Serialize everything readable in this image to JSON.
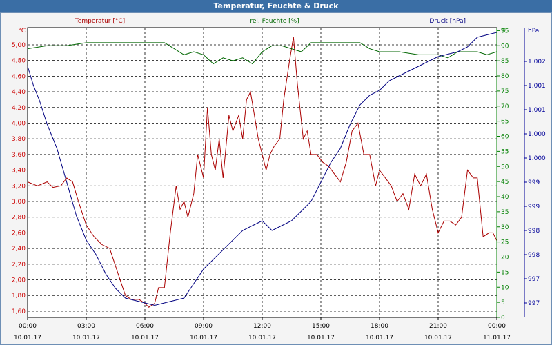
{
  "window": {
    "title": "Temperatur, Feuchte & Druck"
  },
  "chart_data": {
    "type": "line",
    "title": "Temperatur, Feuchte & Druck",
    "x_ticks": [
      {
        "time": "00:00",
        "date": "10.01.17"
      },
      {
        "time": "03:00",
        "date": "10.01.17"
      },
      {
        "time": "06:00",
        "date": "10.01.17"
      },
      {
        "time": "09:00",
        "date": "10.01.17"
      },
      {
        "time": "12:00",
        "date": "10.01.17"
      },
      {
        "time": "15:00",
        "date": "10.01.17"
      },
      {
        "time": "18:00",
        "date": "10.01.17"
      },
      {
        "time": "21:00",
        "date": "10.01.17"
      },
      {
        "time": "00:00",
        "date": "11.01.17"
      }
    ],
    "grid": true,
    "axes": {
      "temperature": {
        "unit": "°C",
        "ylim": [
          1.52,
          5.22
        ],
        "ticks": [
          "1,60",
          "1,80",
          "2,00",
          "2,20",
          "2,40",
          "2,60",
          "2,80",
          "3,00",
          "3,20",
          "3,40",
          "3,60",
          "3,80",
          "4,00",
          "4,20",
          "4,40",
          "4,60",
          "4,80",
          "5,00"
        ],
        "tick_values": [
          1.6,
          1.8,
          2.0,
          2.2,
          2.4,
          2.6,
          2.8,
          3.0,
          3.2,
          3.4,
          3.6,
          3.8,
          4.0,
          4.2,
          4.4,
          4.6,
          4.8,
          5.0
        ],
        "color": "#cc0000"
      },
      "humidity": {
        "unit": "%",
        "ylim": [
          0,
          96
        ],
        "ticks": [
          "0",
          "5",
          "10",
          "15",
          "20",
          "25",
          "30",
          "35",
          "40",
          "45",
          "50",
          "55",
          "60",
          "65",
          "70",
          "75",
          "80",
          "85",
          "90",
          "95"
        ],
        "tick_values": [
          0,
          5,
          10,
          15,
          20,
          25,
          30,
          35,
          40,
          45,
          50,
          55,
          60,
          65,
          70,
          75,
          80,
          85,
          90,
          95
        ],
        "color": "#008000"
      },
      "pressure": {
        "unit": "hPa",
        "ylim": [
          996.5,
          1002.5
        ],
        "ticks": [
          "997",
          "997",
          "998",
          "998",
          "999",
          "999",
          "1.000",
          "1.000",
          "1.001",
          "1.001",
          "1.002"
        ],
        "tick_values": [
          996.8,
          997.3,
          997.8,
          998.3,
          998.8,
          999.3,
          999.8,
          1000.3,
          1000.8,
          1001.3,
          1001.8
        ],
        "color": "#000099"
      }
    },
    "series": [
      {
        "name": "Temperatur [°C]",
        "axis": "temperature",
        "color": "#aa0000",
        "x": [
          0,
          0.5,
          1,
          1.3,
          1.7,
          2,
          2.3,
          2.6,
          3,
          3.4,
          3.8,
          4.2,
          4.6,
          5,
          5.3,
          5.7,
          6,
          6.2,
          6.5,
          6.7,
          7,
          7.3,
          7.6,
          7.8,
          8,
          8.2,
          8.5,
          8.7,
          9,
          9.2,
          9.4,
          9.6,
          9.8,
          10,
          10.3,
          10.5,
          10.8,
          11,
          11.2,
          11.4,
          11.6,
          11.8,
          12,
          12.2,
          12.4,
          12.6,
          12.9,
          13.1,
          13.4,
          13.6,
          13.8,
          14.1,
          14.3,
          14.5,
          14.8,
          15.1,
          15.4,
          15.7,
          16,
          16.3,
          16.6,
          16.9,
          17.2,
          17.5,
          17.8,
          18,
          18.3,
          18.6,
          18.9,
          19.2,
          19.5,
          19.8,
          20.1,
          20.4,
          20.7,
          21,
          21.3,
          21.6,
          21.9,
          22.2,
          22.5,
          22.8,
          23,
          23.3,
          23.6,
          23.8,
          24
        ],
        "y": [
          3.25,
          3.2,
          3.25,
          3.18,
          3.2,
          3.3,
          3.25,
          3.0,
          2.7,
          2.55,
          2.45,
          2.4,
          2.1,
          1.8,
          1.75,
          1.75,
          1.7,
          1.65,
          1.7,
          1.9,
          1.9,
          2.6,
          3.2,
          2.9,
          3.0,
          2.8,
          3.1,
          3.6,
          3.3,
          4.2,
          3.6,
          3.4,
          3.8,
          3.3,
          4.1,
          3.9,
          4.1,
          3.8,
          4.3,
          4.4,
          4.1,
          3.8,
          3.6,
          3.4,
          3.6,
          3.7,
          3.8,
          4.3,
          4.8,
          5.1,
          4.5,
          3.8,
          3.9,
          3.6,
          3.6,
          3.5,
          3.45,
          3.35,
          3.25,
          3.5,
          3.9,
          4.0,
          3.6,
          3.6,
          3.2,
          3.4,
          3.3,
          3.2,
          3.0,
          3.1,
          2.9,
          3.35,
          3.2,
          3.35,
          2.9,
          2.6,
          2.75,
          2.75,
          2.7,
          2.8,
          3.4,
          3.3,
          3.3,
          2.55,
          2.6,
          2.6,
          2.5
        ]
      },
      {
        "name": "rel. Feuchte [%]",
        "axis": "humidity",
        "color": "#006600",
        "x": [
          0,
          1,
          2,
          3,
          4,
          5,
          6,
          7,
          7.5,
          8,
          8.5,
          9,
          9.5,
          10,
          10.5,
          11,
          11.5,
          12,
          12.5,
          13,
          13.5,
          14,
          14.5,
          15,
          16,
          17,
          17.5,
          18,
          19,
          20,
          21,
          21.5,
          22,
          23,
          23.5,
          24
        ],
        "y": [
          89,
          90,
          90,
          91,
          91,
          91,
          91,
          91,
          89,
          87,
          88,
          87,
          84,
          86,
          85,
          86,
          84,
          88,
          90,
          90,
          89,
          88,
          91,
          91,
          91,
          91,
          89,
          88,
          88,
          87,
          87,
          86,
          88,
          88,
          87,
          88
        ]
      },
      {
        "name": "Druck [hPa]",
        "axis": "pressure",
        "color": "#000080",
        "x": [
          0,
          0.3,
          0.6,
          1,
          1.5,
          2,
          2.5,
          3,
          3.5,
          4,
          4.5,
          5,
          5.5,
          6,
          6.5,
          7,
          7.5,
          8,
          8.5,
          9,
          9.5,
          10,
          10.5,
          11,
          11.5,
          12,
          12.5,
          13,
          13.5,
          14,
          14.5,
          15,
          15.5,
          16,
          16.5,
          17,
          17.5,
          18,
          18.5,
          19,
          19.5,
          20,
          20.5,
          21,
          21.5,
          22,
          22.5,
          23,
          23.5,
          24
        ],
        "y": [
          1001.7,
          1001.3,
          1001.0,
          1000.5,
          1000.0,
          999.3,
          998.6,
          998.1,
          997.8,
          997.4,
          997.1,
          996.9,
          996.85,
          996.8,
          996.75,
          996.8,
          996.85,
          996.9,
          997.2,
          997.5,
          997.7,
          997.9,
          998.1,
          998.3,
          998.4,
          998.5,
          998.3,
          998.4,
          998.5,
          998.7,
          998.9,
          999.3,
          999.7,
          1000.0,
          1000.5,
          1000.9,
          1001.1,
          1001.2,
          1001.4,
          1001.5,
          1001.6,
          1001.7,
          1001.8,
          1001.9,
          1001.95,
          1002.0,
          1002.1,
          1002.3,
          1002.35,
          1002.4
        ]
      }
    ]
  }
}
